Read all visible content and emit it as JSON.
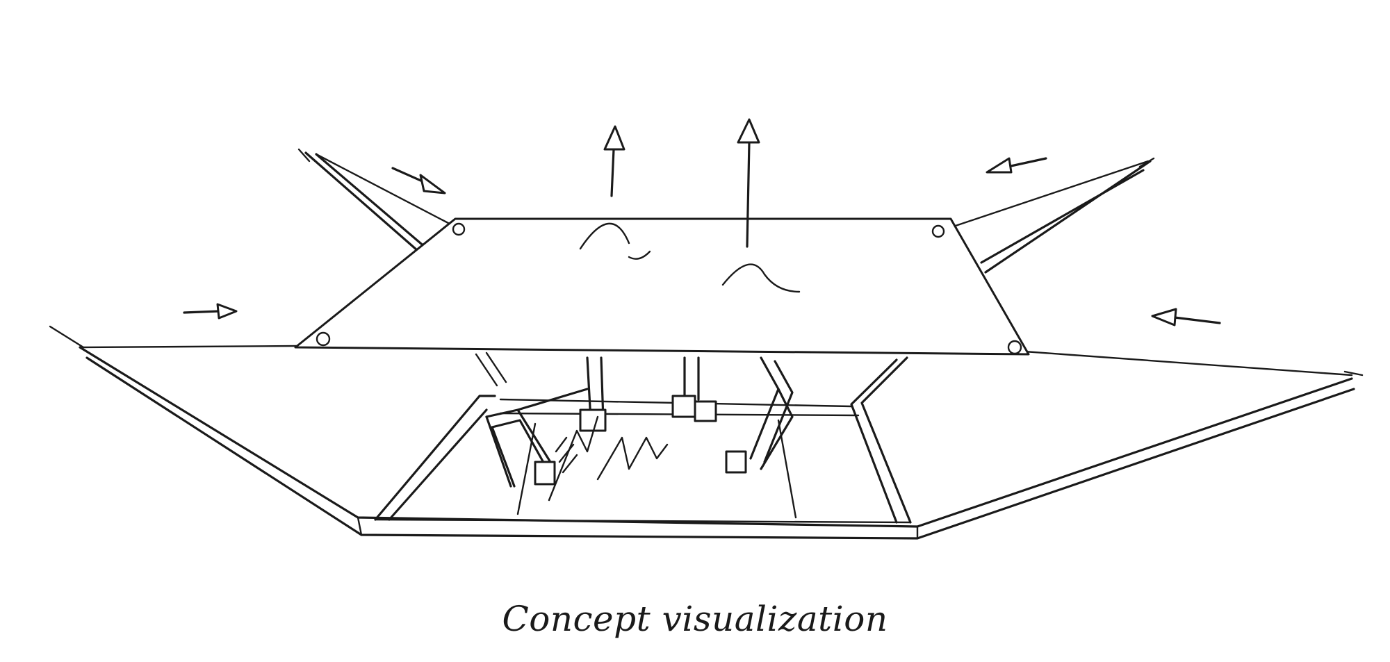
{
  "caption": "Concept visualization",
  "ink_color": "#1a1a1a",
  "background_color": "#ffffff"
}
